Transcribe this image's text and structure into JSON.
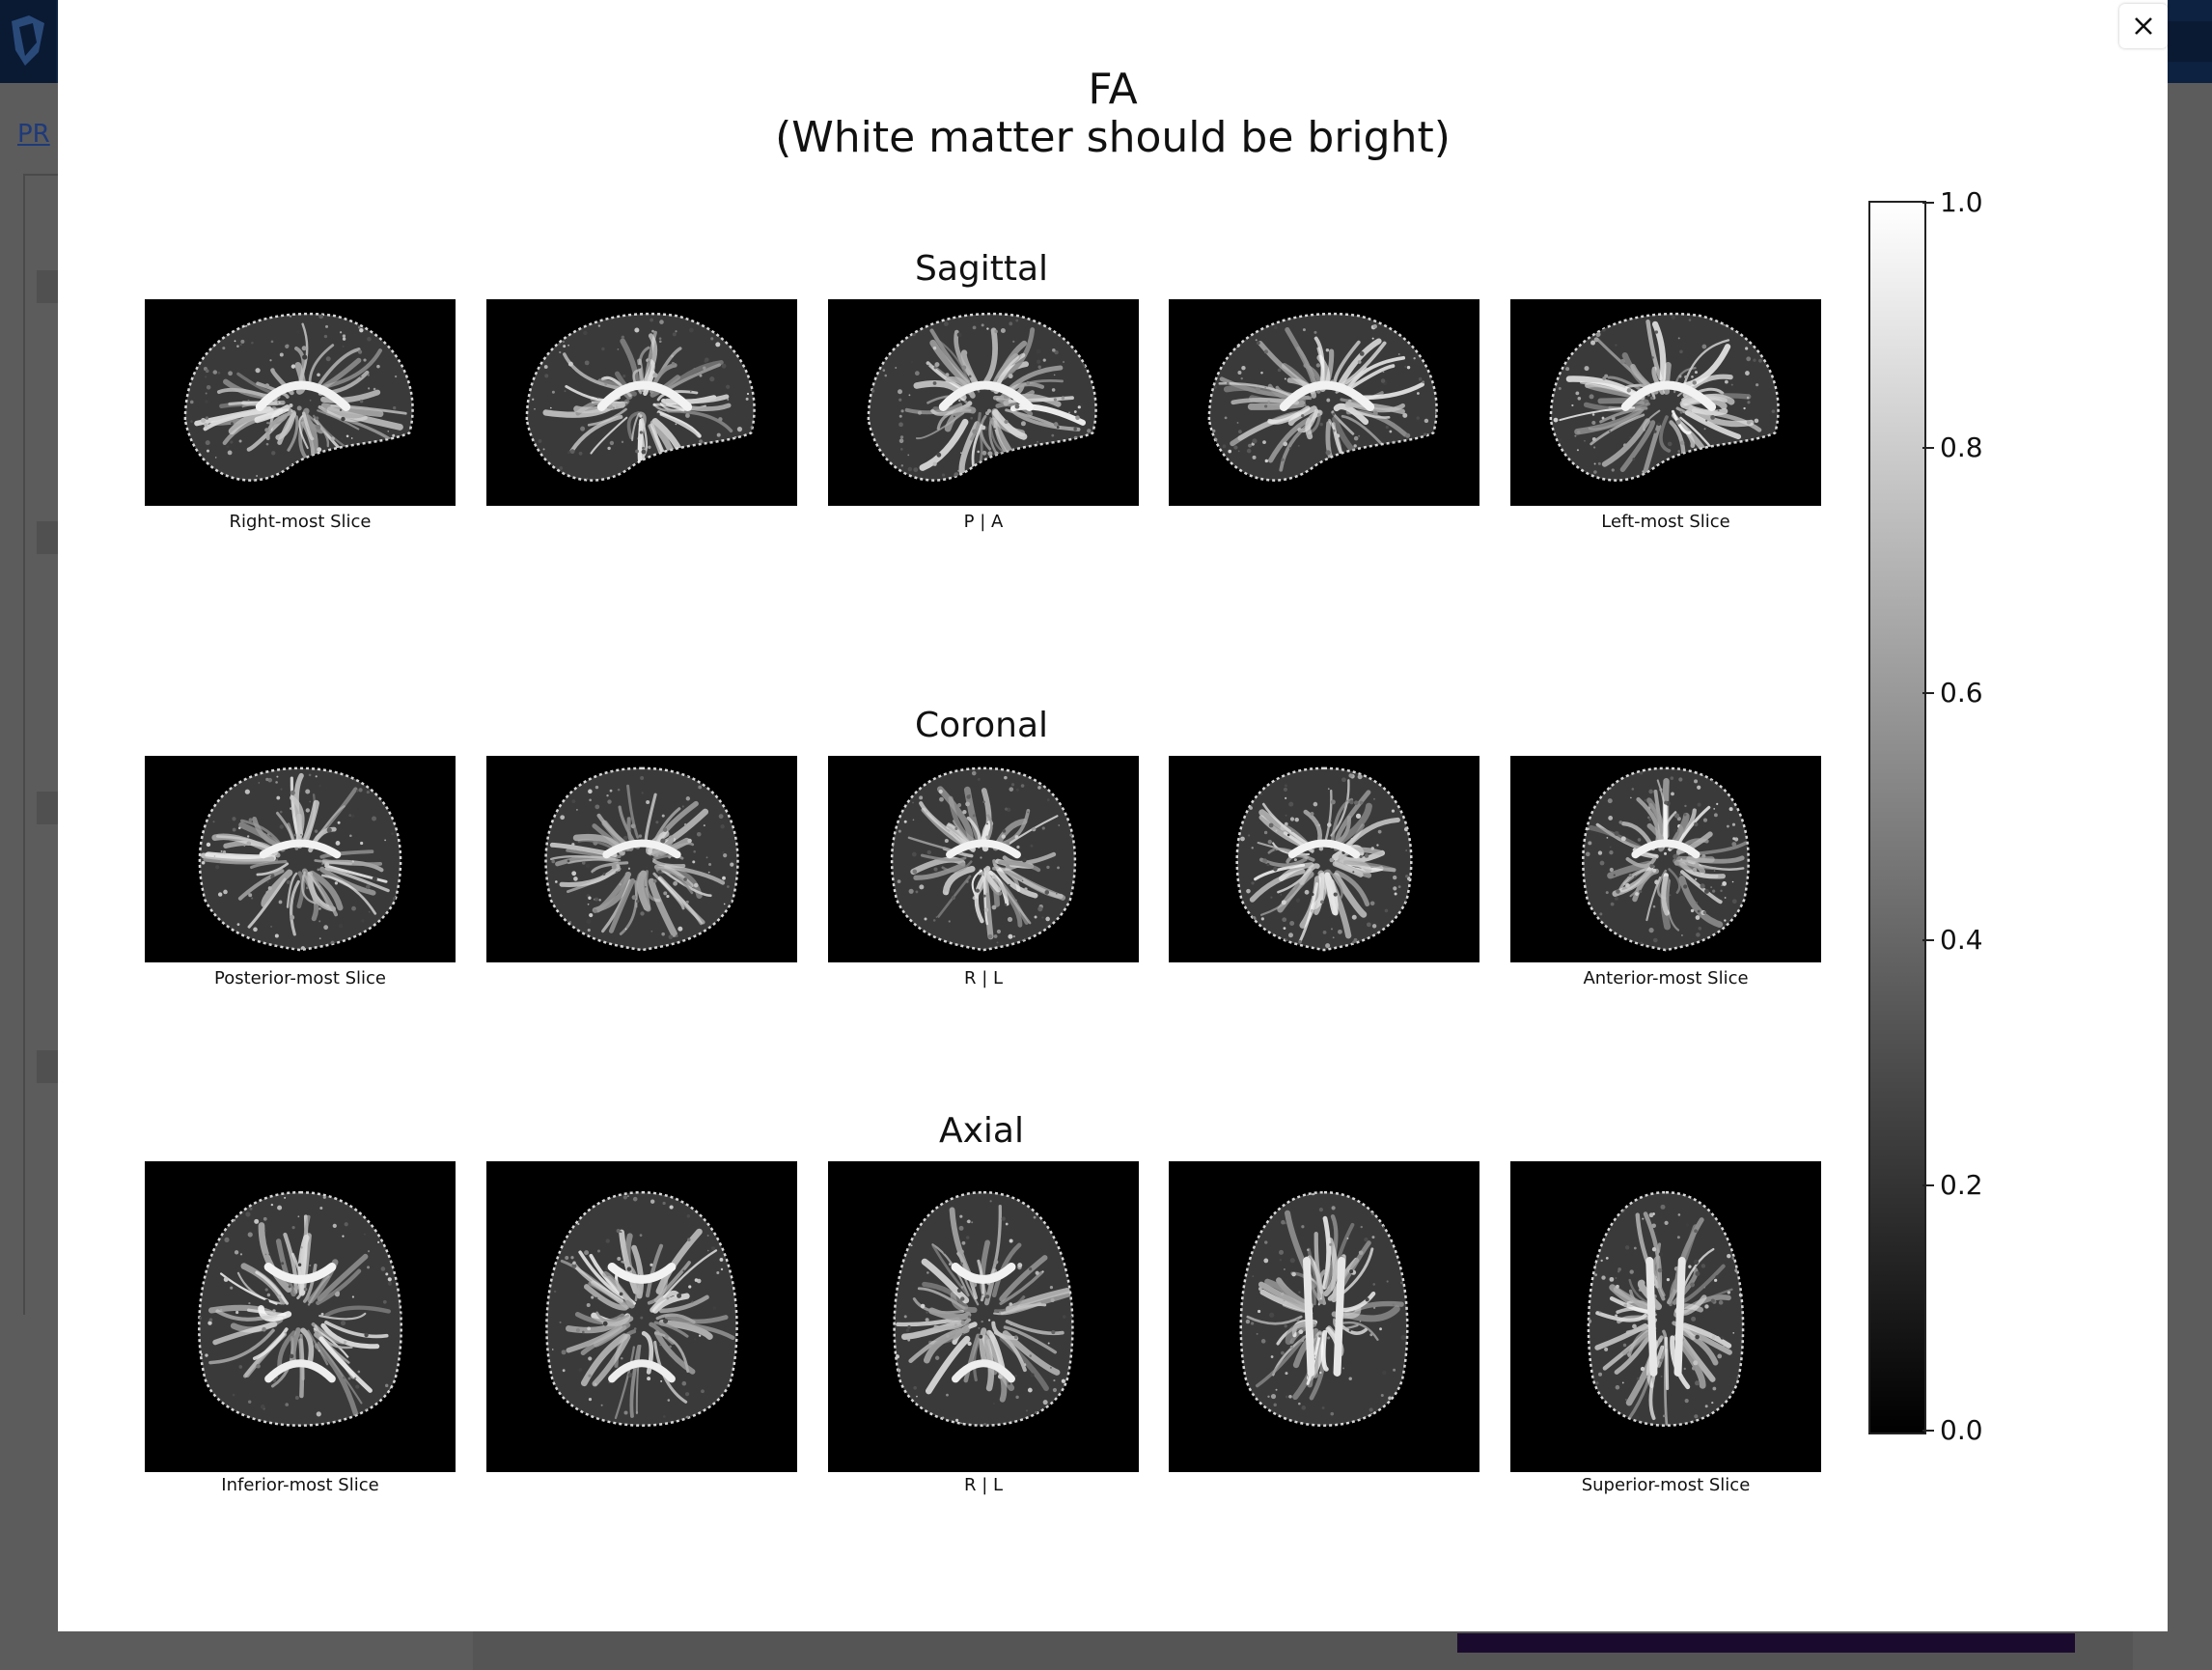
{
  "figure": {
    "title": "FA",
    "subtitle": "(White matter should be bright)"
  },
  "rows": [
    {
      "title": "Sagittal",
      "view": "sagittal",
      "labels": [
        "Right-most Slice",
        "",
        "P | A",
        "",
        "Left-most Slice"
      ]
    },
    {
      "title": "Coronal",
      "view": "coronal",
      "labels": [
        "Posterior-most Slice",
        "",
        "R | L",
        "",
        "Anterior-most Slice"
      ]
    },
    {
      "title": "Axial",
      "view": "axial",
      "labels": [
        "Inferior-most Slice",
        "",
        "R | L",
        "",
        "Superior-most Slice"
      ]
    }
  ],
  "colorbar": {
    "min": 0.0,
    "max": 1.0,
    "ticks": [
      "0.0",
      "0.2",
      "0.4",
      "0.6",
      "0.8",
      "1.0"
    ],
    "colormap": "gray"
  },
  "modal": {
    "close_icon": "close-icon"
  },
  "colors": {
    "modal_bg": "#ffffff",
    "overlay": "#5e5e5e",
    "header": "#0d2240"
  }
}
